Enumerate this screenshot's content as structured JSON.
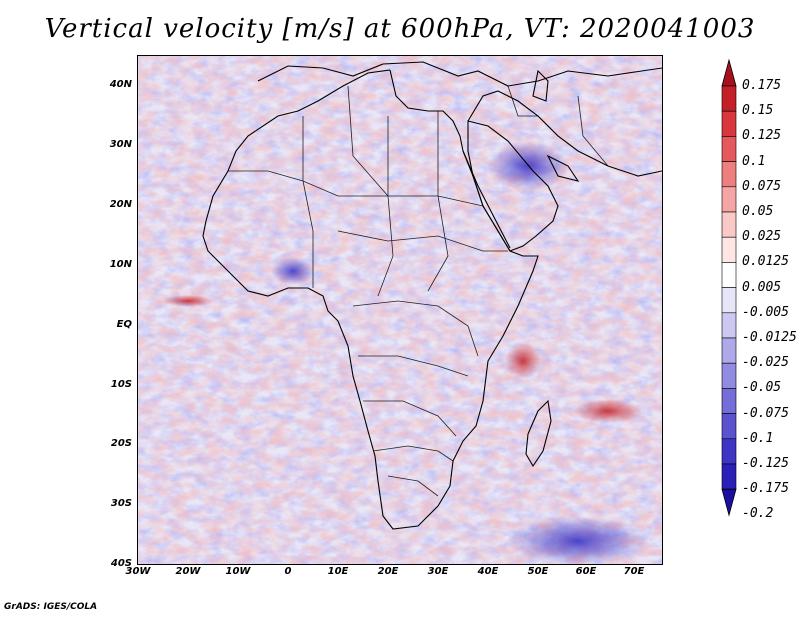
{
  "title": "Vertical velocity [m/s] at 600hPa, VT: 2020041003",
  "footer": "GrADS: IGES/COLA",
  "lat_labels": [
    "40N",
    "30N",
    "20N",
    "10N",
    "EQ",
    "10S",
    "20S",
    "30S",
    "40S"
  ],
  "lon_labels": [
    "30W",
    "20W",
    "10W",
    "0",
    "10E",
    "20E",
    "30E",
    "40E",
    "50E",
    "60E",
    "70E"
  ],
  "legend": {
    "labels": [
      "0.175",
      "0.15",
      "0.125",
      "0.1",
      "0.075",
      "0.05",
      "0.025",
      "0.0125",
      "0.005",
      "-0.005",
      "-0.0125",
      "-0.025",
      "-0.05",
      "-0.075",
      "-0.1",
      "-0.125",
      "-0.175",
      "-0.2"
    ],
    "colors": [
      "#a5121c",
      "#c42027",
      "#d8373d",
      "#e5585c",
      "#ee7f7f",
      "#f5a5a3",
      "#f9c9c6",
      "#fde6e4",
      "#ffffff",
      "#e7e6f9",
      "#cbc8f2",
      "#aeaaea",
      "#918be1",
      "#756dd8",
      "#5a52cf",
      "#3e35c5",
      "#2a1fb7",
      "#1a0fa0"
    ]
  },
  "map": {
    "projection": "lat-lon",
    "lon_range": [
      -30,
      75
    ],
    "lat_range": [
      -40,
      45
    ],
    "variable": "vertical velocity",
    "level": "600hPa",
    "valid_time": "2020041003"
  }
}
